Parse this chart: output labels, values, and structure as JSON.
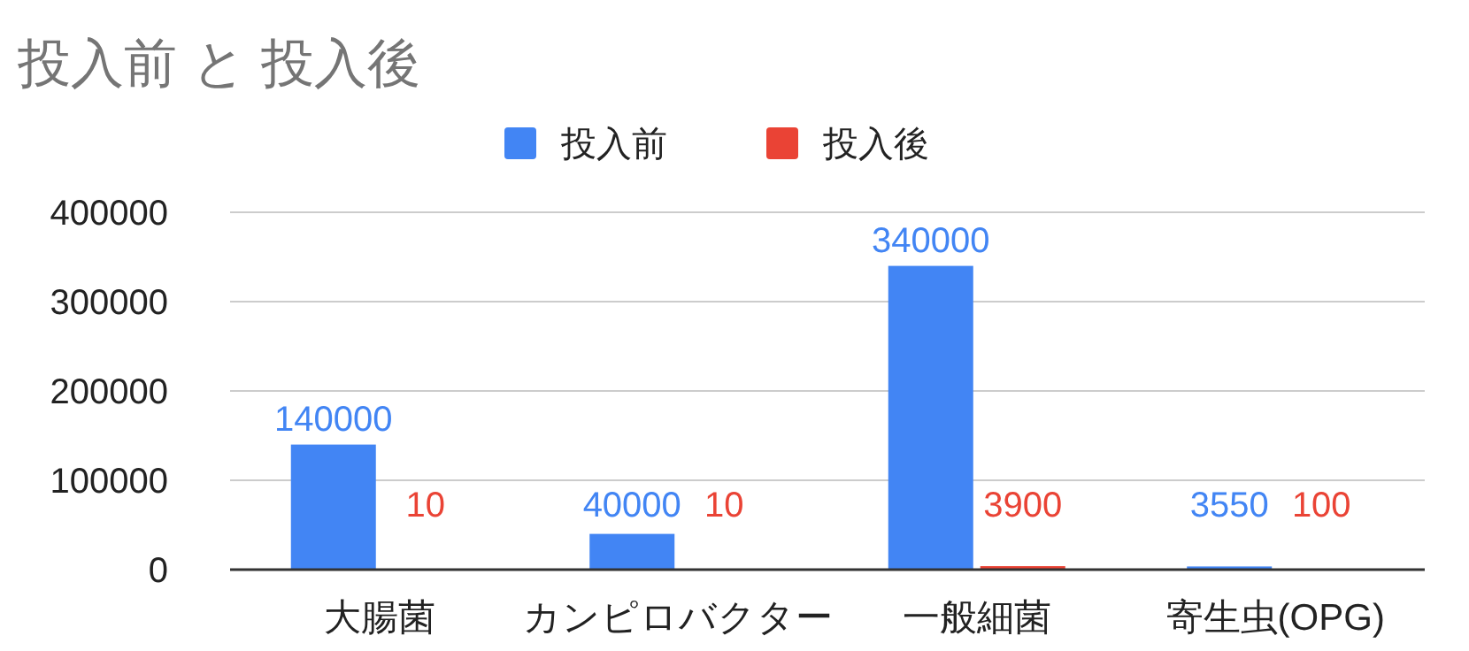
{
  "chart_data": {
    "type": "bar",
    "title": "投入前 と 投入後",
    "categories": [
      "大腸菌",
      "カンピロバクター",
      "一般細菌",
      "寄生虫(OPG)"
    ],
    "series": [
      {
        "name": "投入前",
        "color": "#4285f4",
        "values": [
          140000,
          40000,
          340000,
          3550
        ]
      },
      {
        "name": "投入後",
        "color": "#ea4335",
        "values": [
          10,
          10,
          3900,
          100
        ]
      }
    ],
    "ylim": [
      0,
      400000
    ],
    "yticks": [
      0,
      100000,
      200000,
      300000,
      400000
    ],
    "grid": "y",
    "legend": "top",
    "data_labels": true
  }
}
